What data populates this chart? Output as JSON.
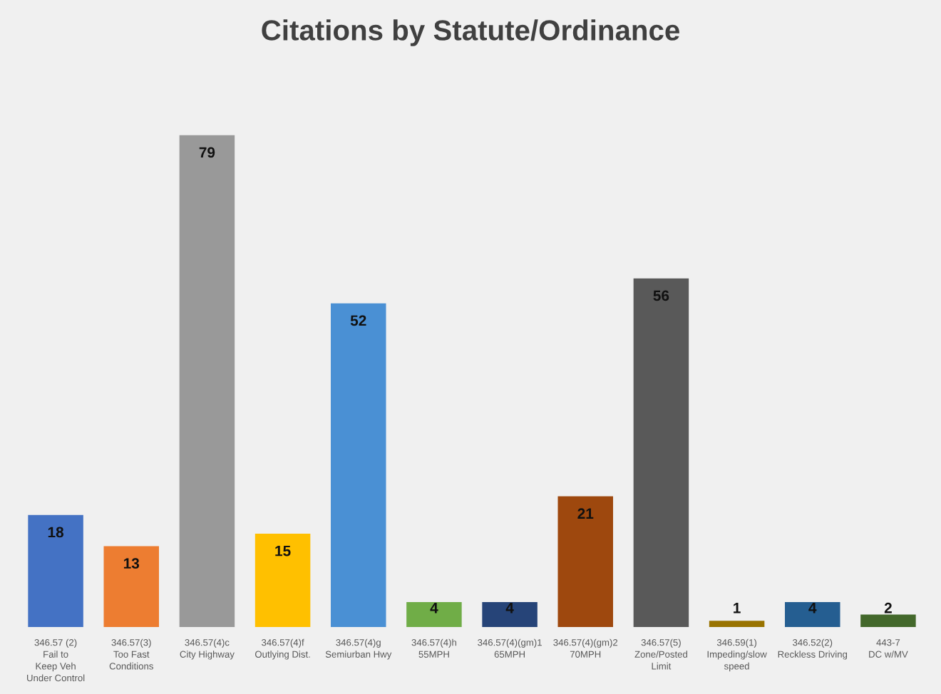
{
  "chart_data": {
    "type": "bar",
    "title": "Citations by Statute/Ordinance",
    "categories": [
      "346.57 (2)\nFail to\nKeep Veh\nUnder Control",
      "346.57(3)\nToo Fast\nConditions",
      "346.57(4)c\nCity Highway",
      "346.57(4)f\nOutlying Dist.",
      "346.57(4)g\nSemiurban Hwy",
      "346.57(4)h\n55MPH",
      "346.57(4)(gm)1\n65MPH",
      "346.57(4)(gm)2\n70MPH",
      "346.57(5)\nZone/Posted\nLimit",
      "346.59(1)\nImpeding/slow\nspeed",
      "346.52(2)\nReckless Driving",
      "443-7\nDC w/MV"
    ],
    "values": [
      18,
      13,
      79,
      15,
      52,
      4,
      4,
      21,
      56,
      1,
      4,
      2
    ],
    "colors": [
      "#4472c4",
      "#ed7d31",
      "#999999",
      "#ffc000",
      "#4a90d4",
      "#70ad47",
      "#264478",
      "#9e480e",
      "#595959",
      "#997300",
      "#255e91",
      "#43682b"
    ],
    "data_labels": true,
    "tick_labels": "x",
    "grid": false,
    "legend": false
  }
}
